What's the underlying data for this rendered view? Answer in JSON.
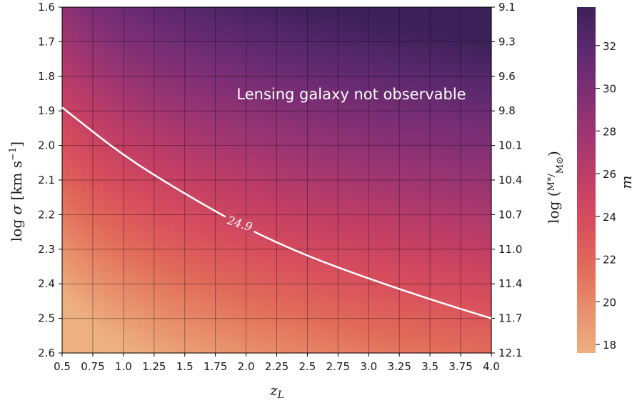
{
  "chart_data": {
    "type": "heatmap",
    "x_values": [
      "0.5",
      "0.75",
      "1.0",
      "1.25",
      "1.5",
      "1.75",
      "2.0",
      "2.25",
      "2.5",
      "2.75",
      "3.0",
      "3.25",
      "3.5",
      "3.75",
      "4.0"
    ],
    "y_left_values": [
      "1.6",
      "1.7",
      "1.8",
      "1.9",
      "2.0",
      "2.1",
      "2.2",
      "2.3",
      "2.4",
      "2.5",
      "2.6"
    ],
    "y_right_values": [
      "9.1",
      "9.3",
      "9.6",
      "9.8",
      "10.1",
      "10.4",
      "10.7",
      "11.0",
      "11.4",
      "11.7",
      "12.1"
    ],
    "colorbar_ticks": [
      "18",
      "20",
      "22",
      "24",
      "26",
      "28",
      "30",
      "32"
    ],
    "xlim": [
      0.5,
      4.0
    ],
    "ylim": [
      1.6,
      2.6
    ],
    "clim": [
      17.6,
      33.8
    ],
    "xlabel": "z_L",
    "ylabel_left": "log σ [km s⁻¹]",
    "ylabel_right": "log (M*/M⊙)",
    "colorbar_label": "m",
    "annotation": "Lensing galaxy not observable",
    "contour": {
      "level_label": "24.9",
      "points": [
        {
          "x": 0.5,
          "y": 1.89
        },
        {
          "x": 1.0,
          "y": 2.03
        },
        {
          "x": 1.5,
          "y": 2.14
        },
        {
          "x": 2.0,
          "y": 2.24
        },
        {
          "x": 2.5,
          "y": 2.32
        },
        {
          "x": 3.0,
          "y": 2.385
        },
        {
          "x": 3.5,
          "y": 2.445
        },
        {
          "x": 4.0,
          "y": 2.5
        }
      ]
    },
    "grid": true,
    "colormap": [
      "#edb081",
      "#e88f6b",
      "#e16b5a",
      "#d74e5d",
      "#c13e65",
      "#a03671",
      "#7f2f75",
      "#5d296f",
      "#3c2158"
    ]
  }
}
